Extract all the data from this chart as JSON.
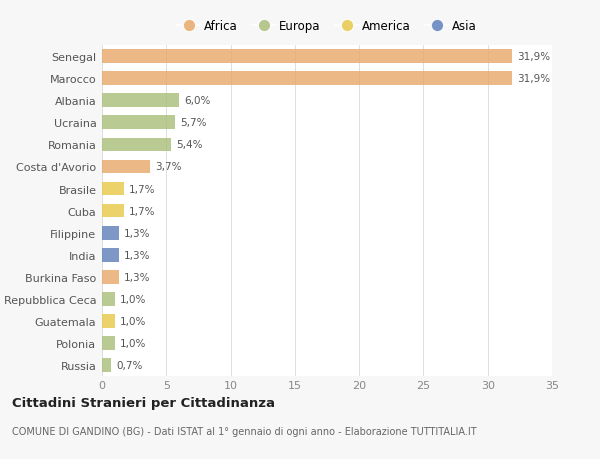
{
  "countries": [
    "Russia",
    "Polonia",
    "Guatemala",
    "Repubblica Ceca",
    "Burkina Faso",
    "India",
    "Filippine",
    "Cuba",
    "Brasile",
    "Costa d'Avorio",
    "Romania",
    "Ucraina",
    "Albania",
    "Marocco",
    "Senegal"
  ],
  "values": [
    0.7,
    1.0,
    1.0,
    1.0,
    1.3,
    1.3,
    1.3,
    1.7,
    1.7,
    3.7,
    5.4,
    5.7,
    6.0,
    31.9,
    31.9
  ],
  "labels": [
    "0,7%",
    "1,0%",
    "1,0%",
    "1,0%",
    "1,3%",
    "1,3%",
    "1,3%",
    "1,7%",
    "1,7%",
    "3,7%",
    "5,4%",
    "5,7%",
    "6,0%",
    "31,9%",
    "31,9%"
  ],
  "colors": [
    "#aabf7c",
    "#aabf7c",
    "#e8c84a",
    "#aabf7c",
    "#e8a96a",
    "#6080bb",
    "#6080bb",
    "#e8c84a",
    "#e8c84a",
    "#e8a96a",
    "#aabf7c",
    "#aabf7c",
    "#aabf7c",
    "#e8a96a",
    "#e8a96a"
  ],
  "legend_labels": [
    "Africa",
    "Europa",
    "America",
    "Asia"
  ],
  "legend_colors": [
    "#e8a96a",
    "#aabf7c",
    "#e8c84a",
    "#6080bb"
  ],
  "title": "Cittadini Stranieri per Cittadinanza",
  "subtitle": "COMUNE DI GANDINO (BG) - Dati ISTAT al 1° gennaio di ogni anno - Elaborazione TUTTITALIA.IT",
  "xlim": [
    0,
    35
  ],
  "xticks": [
    0,
    5,
    10,
    15,
    20,
    25,
    30,
    35
  ],
  "bg_color": "#f7f7f7",
  "plot_bg_color": "#ffffff"
}
